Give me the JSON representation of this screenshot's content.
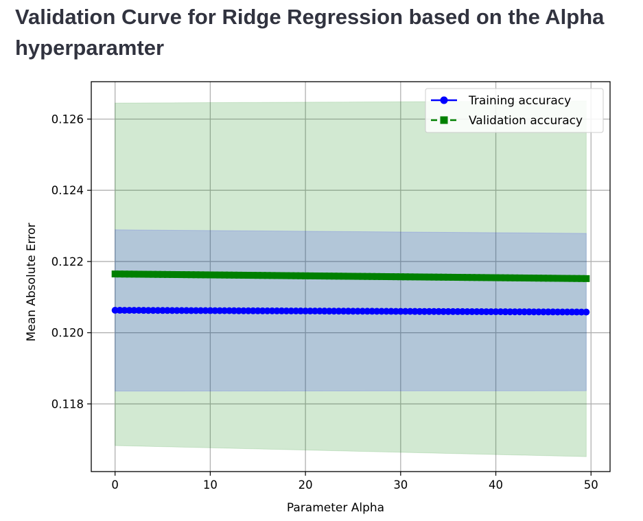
{
  "page": {
    "title": "Validation Curve for Ridge Regression based on the Alpha hyperparamter"
  },
  "chart_data": {
    "type": "line",
    "xlabel": "Parameter Alpha",
    "ylabel": "Mean Absolute Error",
    "xlim": [
      -2.5,
      52
    ],
    "ylim": [
      0.1161,
      0.12705
    ],
    "xticks": [
      0,
      10,
      20,
      30,
      40,
      50
    ],
    "yticks": [
      0.118,
      0.12,
      0.122,
      0.124,
      0.126
    ],
    "ytick_labels": [
      "0.118",
      "0.120",
      "0.122",
      "0.124",
      "0.126"
    ],
    "grid": true,
    "legend_position": "upper right",
    "series": [
      {
        "name": "Training accuracy",
        "color": "#0000ff",
        "marker": "circle",
        "linestyle": "solid",
        "band_color": "#b0c4d6",
        "x_start": 0,
        "x_end": 49.5,
        "mean": [
          0.12063,
          0.12058
        ],
        "std_band_upper": [
          0.12289,
          0.12279
        ],
        "std_band_lower": [
          0.11836,
          0.11837
        ]
      },
      {
        "name": "Validation accuracy",
        "color": "#008000",
        "marker": "square",
        "linestyle": "dashed",
        "band_color": "#d2e8d2",
        "x_start": 0,
        "x_end": 49.5,
        "mean": [
          0.12165,
          0.12152
        ],
        "std_band_upper": [
          0.12645,
          0.12651
        ],
        "std_band_lower": [
          0.11683,
          0.11652
        ]
      }
    ]
  }
}
